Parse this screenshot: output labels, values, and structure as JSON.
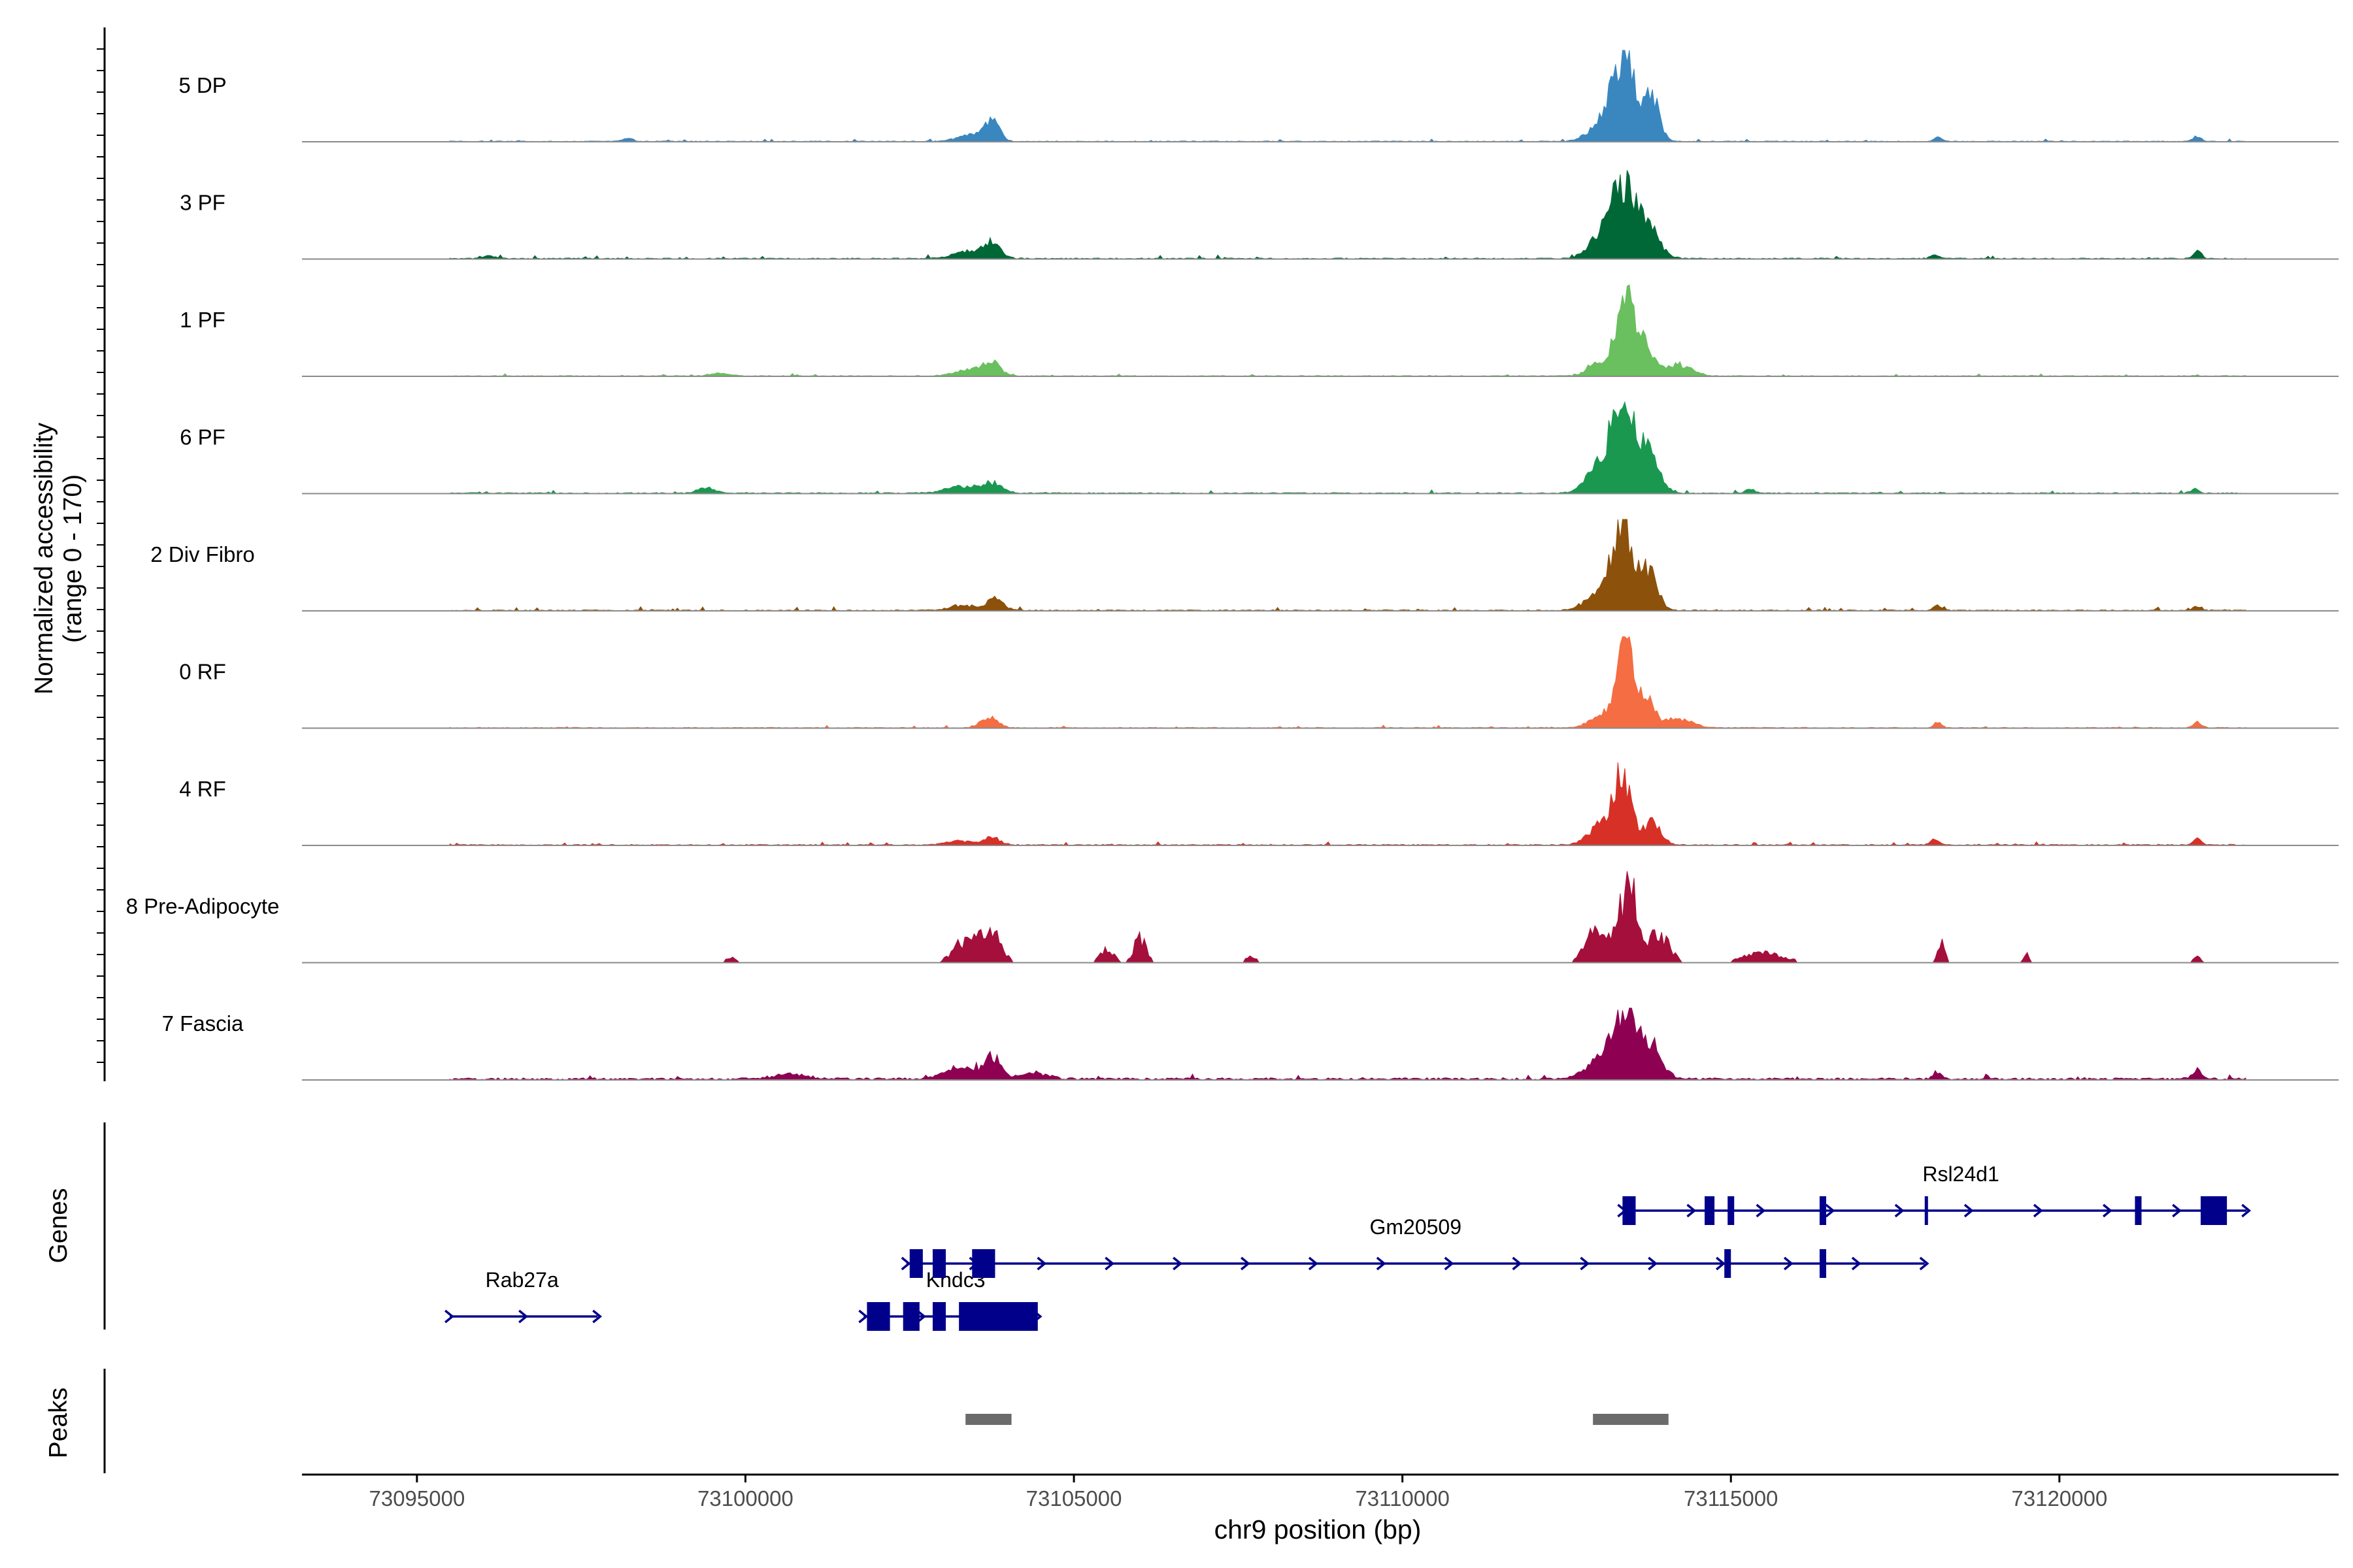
{
  "chart_data": {
    "type": "area",
    "title": "",
    "xlabel": "chr9 position (bp)",
    "ylabel_line1": "Normalized accessibility",
    "ylabel_line2": "(range 0 - 170)",
    "xlim": [
      73093250,
      73124250
    ],
    "x_ticks": [
      73095000,
      73100000,
      73105000,
      73110000,
      73115000,
      73120000
    ],
    "x_tick_labels": [
      "73095000",
      "73100000",
      "73105000",
      "73110000",
      "73115000",
      "73120000"
    ],
    "track_range": [
      0,
      170
    ],
    "region_start": 73095500,
    "region_end": 73122850,
    "tracks": [
      {
        "name": "5 DP",
        "color": "#3A87C0",
        "baseline": 1.5,
        "noise": 3,
        "peaks": [
          [
            73113400,
            150,
            160
          ],
          [
            73113800,
            90,
            110
          ],
          [
            73113100,
            50,
            200
          ],
          [
            73103750,
            40,
            110
          ],
          [
            73103400,
            12,
            200
          ],
          [
            73122100,
            10,
            60
          ],
          [
            73118150,
            7,
            60
          ],
          [
            73098200,
            6,
            80
          ]
        ]
      },
      {
        "name": "3 PF",
        "color": "#006837",
        "baseline": 2,
        "noise": 4,
        "peaks": [
          [
            73113350,
            120,
            170
          ],
          [
            73113700,
            70,
            180
          ],
          [
            73113050,
            45,
            200
          ],
          [
            73103750,
            30,
            130
          ],
          [
            73103400,
            14,
            220
          ],
          [
            73122100,
            14,
            60
          ],
          [
            73118100,
            8,
            60
          ],
          [
            73096100,
            6,
            80
          ]
        ]
      },
      {
        "name": "1 PF",
        "color": "#6ABF5E",
        "baseline": 1.5,
        "noise": 3,
        "peaks": [
          [
            73113400,
            155,
            130
          ],
          [
            73113700,
            60,
            120
          ],
          [
            73114200,
            22,
            200
          ],
          [
            73113050,
            30,
            180
          ],
          [
            73103750,
            24,
            130
          ],
          [
            73103400,
            12,
            220
          ],
          [
            73099600,
            5,
            150
          ]
        ]
      },
      {
        "name": "6 PF",
        "color": "#1A9850",
        "baseline": 2,
        "noise": 4,
        "peaks": [
          [
            73113350,
            170,
            170
          ],
          [
            73113750,
            75,
            160
          ],
          [
            73113000,
            45,
            200
          ],
          [
            73103750,
            18,
            150
          ],
          [
            73103300,
            12,
            260
          ],
          [
            73099400,
            10,
            120
          ],
          [
            73122050,
            8,
            60
          ],
          [
            73115300,
            7,
            80
          ]
        ]
      },
      {
        "name": "2 Div Fibro",
        "color": "#8C510A",
        "baseline": 2,
        "noise": 4,
        "peaks": [
          [
            73113350,
            165,
            150
          ],
          [
            73113750,
            75,
            130
          ],
          [
            73113000,
            35,
            200
          ],
          [
            73103800,
            22,
            120
          ],
          [
            73103300,
            10,
            200
          ],
          [
            73118150,
            11,
            60
          ],
          [
            73122100,
            9,
            60
          ]
        ]
      },
      {
        "name": "0 RF",
        "color": "#F46D43",
        "baseline": 1.5,
        "noise": 3,
        "peaks": [
          [
            73113400,
            160,
            120
          ],
          [
            73113700,
            55,
            130
          ],
          [
            73114200,
            18,
            200
          ],
          [
            73113050,
            28,
            180
          ],
          [
            73103700,
            22,
            130
          ],
          [
            73118150,
            10,
            60
          ],
          [
            73122100,
            11,
            60
          ]
        ]
      },
      {
        "name": "4 RF",
        "color": "#D73027",
        "baseline": 2,
        "noise": 4,
        "peaks": [
          [
            73113350,
            125,
            130
          ],
          [
            73113800,
            45,
            130
          ],
          [
            73113050,
            40,
            200
          ],
          [
            73103750,
            15,
            120
          ],
          [
            73103250,
            8,
            200
          ],
          [
            73118100,
            12,
            60
          ],
          [
            73122100,
            14,
            60
          ]
        ]
      },
      {
        "name": "8 Pre-Adipocyte",
        "color": "#A50F3B",
        "baseline": 0,
        "noise": 18,
        "sparse": true,
        "peaks": [
          [
            73113450,
            170,
            130
          ],
          [
            73113000,
            80,
            180
          ],
          [
            73113900,
            60,
            160
          ],
          [
            73103700,
            75,
            160
          ],
          [
            73103300,
            40,
            160
          ],
          [
            73106000,
            55,
            90
          ],
          [
            73105500,
            30,
            110
          ],
          [
            73099800,
            10,
            100
          ],
          [
            73118200,
            40,
            60
          ],
          [
            73119500,
            18,
            50
          ],
          [
            73122100,
            18,
            50
          ],
          [
            73115500,
            22,
            300
          ],
          [
            73107700,
            12,
            100
          ]
        ]
      },
      {
        "name": "7 Fascia",
        "color": "#8E0152",
        "baseline": 4,
        "noise": 6,
        "peaks": [
          [
            73113400,
            120,
            180
          ],
          [
            73113800,
            60,
            160
          ],
          [
            73113000,
            35,
            220
          ],
          [
            73103750,
            42,
            130
          ],
          [
            73103250,
            20,
            250
          ],
          [
            73104400,
            12,
            200
          ],
          [
            73118150,
            14,
            70
          ],
          [
            73122100,
            18,
            70
          ],
          [
            73100700,
            10,
            250
          ]
        ]
      }
    ],
    "genes_label": "Genes",
    "peaks_label": "Peaks",
    "genes": [
      {
        "name": "Rab27a",
        "start": 73095500,
        "end": 73097750,
        "strand": "+",
        "row": 3,
        "exons": [],
        "label_x": 73096600
      },
      {
        "name": "Khdc3",
        "start": 73101800,
        "end": 73104450,
        "strand": "+",
        "row": 3,
        "exons": [
          [
            73101850,
            73102200
          ],
          [
            73102400,
            73102650
          ],
          [
            73102850,
            73103050
          ],
          [
            73103250,
            73104450
          ]
        ],
        "label_x": 73103200
      },
      {
        "name": "Gm20509",
        "start": 73102450,
        "end": 73117950,
        "strand": "+",
        "row": 2,
        "exons": [
          [
            73102500,
            73102700
          ],
          [
            73102850,
            73103050
          ],
          [
            73103450,
            73103800
          ],
          [
            73114900,
            73115000
          ],
          [
            73116350,
            73116450
          ]
        ],
        "label_x": 73110200
      },
      {
        "name": "Rsl24d1",
        "start": 73113350,
        "end": 73122850,
        "strand": "+",
        "row": 1,
        "exons": [
          [
            73113350,
            73113550
          ],
          [
            73114600,
            73114750
          ],
          [
            73114950,
            73115050
          ],
          [
            73116350,
            73116450
          ],
          [
            73117950,
            73118000
          ],
          [
            73121150,
            73121250
          ],
          [
            73122150,
            73122550
          ]
        ],
        "label_x": 73118500
      }
    ],
    "peaks": [
      [
        73103350,
        73104050
      ],
      [
        73112900,
        73114050
      ]
    ]
  }
}
